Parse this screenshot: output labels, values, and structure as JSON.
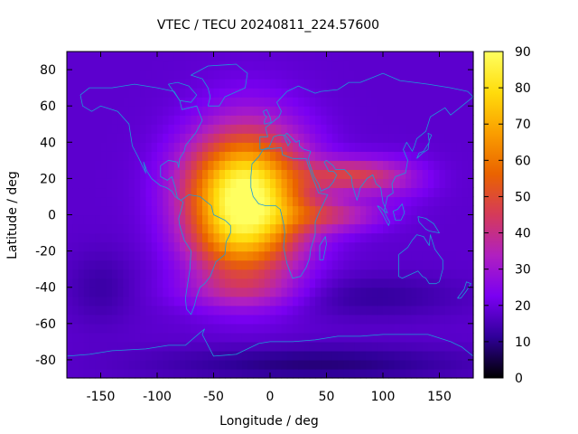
{
  "chart_data": {
    "type": "heatmap",
    "title": "VTEC / TECU 20240811_224.57600",
    "xlabel": "Longitude / deg",
    "ylabel": "Latitude / deg",
    "xlim": [
      -180,
      180
    ],
    "ylim": [
      -90,
      90
    ],
    "x_ticks": [
      -150,
      -100,
      -50,
      0,
      50,
      100,
      150
    ],
    "y_ticks": [
      -80,
      -60,
      -40,
      -20,
      0,
      20,
      40,
      60,
      80
    ],
    "colorbar": {
      "range": [
        0,
        90
      ],
      "ticks": [
        0,
        10,
        20,
        30,
        40,
        50,
        60,
        70,
        80,
        90
      ],
      "palette": [
        "#000000",
        "#2f0098",
        "#7a00f2",
        "#b020c0",
        "#d53a5a",
        "#ea6300",
        "#fa9e00",
        "#ffdc0c",
        "#ffff60"
      ]
    },
    "grid_resolution_deg": 5,
    "features": [
      {
        "name": "background",
        "value": 18
      },
      {
        "name": "main-crest",
        "lon": -18,
        "lat": 8,
        "lon_width": 50,
        "lat_width": 38,
        "peak": 67
      },
      {
        "name": "north-crest",
        "lon": -45,
        "lat": 18,
        "lon_width": 45,
        "lat_width": 24,
        "peak": 12
      },
      {
        "name": "south-crest",
        "lon": -38,
        "lat": -15,
        "lon_width": 40,
        "lat_width": 22,
        "peak": 12
      },
      {
        "name": "asian-tongue-north",
        "lon": 70,
        "lat": 22,
        "lon_width": 38,
        "lat_width": 9,
        "peak": 24
      },
      {
        "name": "asian-tongue-south",
        "lon": 55,
        "lat": 0,
        "lon_width": 45,
        "lat_width": 9,
        "peak": 18
      },
      {
        "name": "asian-tongue-east",
        "lon": 110,
        "lat": 20,
        "lon_width": 35,
        "lat_width": 12,
        "peak": 10
      },
      {
        "name": "south-atlantic-band",
        "lon": -25,
        "lat": -42,
        "lon_width": 55,
        "lat_width": 10,
        "peak": 10
      },
      {
        "name": "southern-trough",
        "lon": 90,
        "lat": -45,
        "lon_width": 80,
        "lat_width": 12,
        "peak": -6
      },
      {
        "name": "south-pacific-trough",
        "lon": -150,
        "lat": -40,
        "lon_width": 30,
        "lat_width": 20,
        "peak": -5
      },
      {
        "name": "antarctic-low",
        "lon": 40,
        "lat": -82,
        "lon_width": 140,
        "lat_width": 10,
        "peak": -9
      }
    ],
    "coastline_color": "#1c9bd8"
  }
}
